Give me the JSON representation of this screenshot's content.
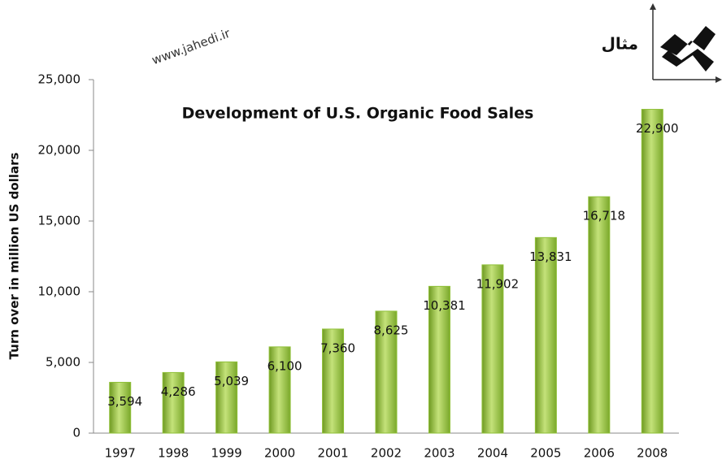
{
  "chart_data": {
    "type": "bar",
    "title": "Development of U.S. Organic Food Sales",
    "y_label": "Turn over in million US dollars",
    "watermark": "www.jahedi.ir",
    "badge": "مثال",
    "categories": [
      "1997",
      "1998",
      "1999",
      "2000",
      "2001",
      "2002",
      "2003",
      "2004",
      "2005",
      "2006",
      "2008"
    ],
    "values": [
      3594,
      4286,
      5039,
      6100,
      7360,
      8625,
      10381,
      11902,
      13831,
      16718,
      22900
    ],
    "value_labels": [
      "3,594",
      "4,286",
      "5,039",
      "6,100",
      "7,360",
      "8,625",
      "10,381",
      "11,902",
      "13,831",
      "16,718",
      "22,900"
    ],
    "color": "#8fc038",
    "ylim": [
      0,
      25000
    ],
    "yticks": [
      0,
      {
        "value": 5000,
        "label": "5,000"
      },
      {
        "value": 10000,
        "label": "10,000"
      },
      {
        "value": 15000,
        "label": "15,000"
      },
      {
        "value": 20000,
        "label": "20,000"
      },
      {
        "value": 25000,
        "label": "25,000"
      }
    ],
    "grid": false
  }
}
